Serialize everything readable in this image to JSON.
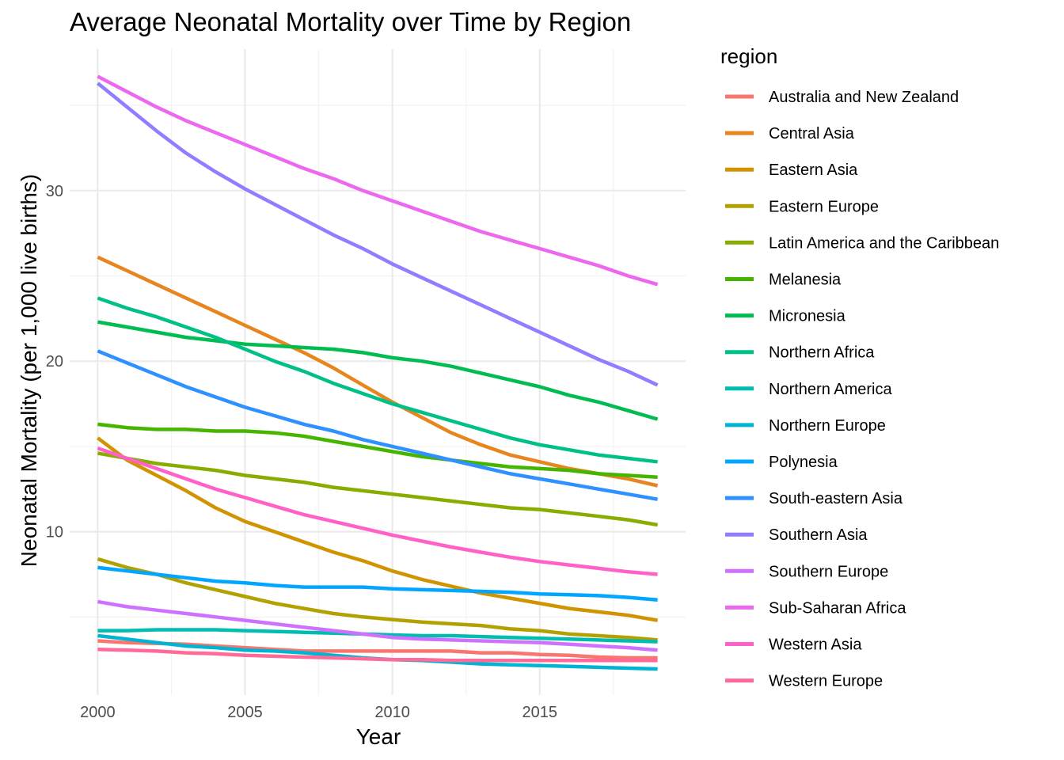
{
  "chart_data": {
    "type": "line",
    "title": "Average Neonatal Mortality over Time by Region",
    "xlabel": "Year",
    "ylabel": "Neonatal Mortality (per 1,000 live births)",
    "xlim": [
      1999.05,
      2019.95
    ],
    "ylim": [
      0.42,
      38.3
    ],
    "x_ticks": [
      2000,
      2005,
      2010,
      2015
    ],
    "x_tick_labels": [
      "2000",
      "2005",
      "2010",
      "2015"
    ],
    "y_ticks": [
      10,
      20,
      30
    ],
    "y_tick_labels": [
      "10",
      "20",
      "30"
    ],
    "grid": true,
    "legend_title": "region",
    "legend_position": "right",
    "x": [
      2000,
      2001,
      2002,
      2003,
      2004,
      2005,
      2006,
      2007,
      2008,
      2009,
      2010,
      2011,
      2012,
      2013,
      2014,
      2015,
      2016,
      2017,
      2018,
      2019
    ],
    "series": [
      {
        "name": "Australia and New Zealand",
        "color": "#F8766D",
        "values": [
          3.6,
          3.5,
          3.45,
          3.4,
          3.3,
          3.2,
          3.1,
          3.0,
          3.0,
          3.0,
          3.0,
          3.0,
          3.0,
          2.9,
          2.9,
          2.8,
          2.75,
          2.65,
          2.6,
          2.6
        ]
      },
      {
        "name": "Central Asia",
        "color": "#E7851E",
        "values": [
          26.1,
          25.3,
          24.5,
          23.7,
          22.9,
          22.1,
          21.3,
          20.5,
          19.6,
          18.6,
          17.6,
          16.7,
          15.8,
          15.1,
          14.5,
          14.1,
          13.7,
          13.4,
          13.1,
          12.7
        ]
      },
      {
        "name": "Eastern Asia",
        "color": "#D09400",
        "values": [
          15.5,
          14.2,
          13.3,
          12.4,
          11.4,
          10.6,
          10.0,
          9.4,
          8.8,
          8.3,
          7.7,
          7.2,
          6.8,
          6.4,
          6.1,
          5.8,
          5.5,
          5.3,
          5.1,
          4.8
        ]
      },
      {
        "name": "Eastern Europe",
        "color": "#B2A100",
        "values": [
          8.4,
          7.9,
          7.5,
          7.0,
          6.6,
          6.2,
          5.8,
          5.5,
          5.2,
          5.0,
          4.85,
          4.7,
          4.6,
          4.5,
          4.3,
          4.2,
          4.0,
          3.9,
          3.8,
          3.65
        ]
      },
      {
        "name": "Latin America and the Caribbean",
        "color": "#89AC00",
        "values": [
          14.6,
          14.3,
          14.0,
          13.8,
          13.6,
          13.3,
          13.1,
          12.9,
          12.6,
          12.4,
          12.2,
          12.0,
          11.8,
          11.6,
          11.4,
          11.3,
          11.1,
          10.9,
          10.7,
          10.4
        ]
      },
      {
        "name": "Melanesia",
        "color": "#45B500",
        "values": [
          16.3,
          16.1,
          16.0,
          16.0,
          15.9,
          15.9,
          15.8,
          15.6,
          15.3,
          15.0,
          14.7,
          14.4,
          14.2,
          14.0,
          13.8,
          13.7,
          13.6,
          13.4,
          13.3,
          13.2
        ]
      },
      {
        "name": "Micronesia",
        "color": "#00BC51",
        "values": [
          22.3,
          22.0,
          21.7,
          21.4,
          21.2,
          21.0,
          20.9,
          20.8,
          20.7,
          20.5,
          20.2,
          20.0,
          19.7,
          19.3,
          18.9,
          18.5,
          18.0,
          17.6,
          17.1,
          16.6
        ]
      },
      {
        "name": "Northern Africa",
        "color": "#00C087",
        "values": [
          23.7,
          23.1,
          22.6,
          22.0,
          21.4,
          20.7,
          20.0,
          19.4,
          18.7,
          18.1,
          17.5,
          17.0,
          16.5,
          16.0,
          15.5,
          15.1,
          14.8,
          14.5,
          14.3,
          14.1
        ]
      },
      {
        "name": "Northern America",
        "color": "#00BDB0",
        "values": [
          4.2,
          4.2,
          4.25,
          4.25,
          4.25,
          4.2,
          4.15,
          4.1,
          4.05,
          4.0,
          3.95,
          3.9,
          3.9,
          3.85,
          3.8,
          3.75,
          3.7,
          3.65,
          3.6,
          3.55
        ]
      },
      {
        "name": "Northern Europe",
        "color": "#00B4D3",
        "values": [
          3.9,
          3.7,
          3.5,
          3.3,
          3.2,
          3.05,
          3.0,
          2.9,
          2.75,
          2.6,
          2.5,
          2.45,
          2.35,
          2.25,
          2.2,
          2.15,
          2.1,
          2.05,
          2.0,
          1.95
        ]
      },
      {
        "name": "Polynesia",
        "color": "#00A6FF",
        "values": [
          7.9,
          7.7,
          7.5,
          7.3,
          7.1,
          7.0,
          6.85,
          6.75,
          6.75,
          6.75,
          6.65,
          6.6,
          6.55,
          6.5,
          6.45,
          6.35,
          6.3,
          6.25,
          6.15,
          6.0
        ]
      },
      {
        "name": "South-eastern Asia",
        "color": "#2F90FF",
        "values": [
          20.6,
          19.9,
          19.2,
          18.5,
          17.9,
          17.3,
          16.8,
          16.3,
          15.9,
          15.4,
          15.0,
          14.6,
          14.2,
          13.8,
          13.4,
          13.1,
          12.8,
          12.5,
          12.2,
          11.9
        ]
      },
      {
        "name": "Southern Asia",
        "color": "#8F7EFF",
        "values": [
          36.3,
          34.9,
          33.5,
          32.2,
          31.1,
          30.1,
          29.2,
          28.3,
          27.4,
          26.6,
          25.7,
          24.9,
          24.1,
          23.3,
          22.5,
          21.7,
          20.9,
          20.1,
          19.4,
          18.6
        ]
      },
      {
        "name": "Southern Europe",
        "color": "#CF71FF",
        "values": [
          5.9,
          5.6,
          5.4,
          5.2,
          5.0,
          4.8,
          4.6,
          4.4,
          4.2,
          4.0,
          3.8,
          3.7,
          3.65,
          3.6,
          3.55,
          3.5,
          3.4,
          3.3,
          3.2,
          3.05
        ]
      },
      {
        "name": "Sub-Saharan Africa",
        "color": "#EC69EF",
        "values": [
          36.7,
          35.8,
          34.9,
          34.1,
          33.4,
          32.7,
          32.0,
          31.3,
          30.7,
          30.0,
          29.4,
          28.8,
          28.2,
          27.6,
          27.1,
          26.6,
          26.1,
          25.6,
          25.0,
          24.5
        ]
      },
      {
        "name": "Western Asia",
        "color": "#FF61C9",
        "values": [
          14.9,
          14.3,
          13.7,
          13.1,
          12.5,
          12.0,
          11.5,
          11.0,
          10.6,
          10.2,
          9.8,
          9.45,
          9.1,
          8.8,
          8.5,
          8.25,
          8.05,
          7.85,
          7.65,
          7.5
        ]
      },
      {
        "name": "Western Europe",
        "color": "#FF6A98",
        "values": [
          3.1,
          3.05,
          3.0,
          2.9,
          2.85,
          2.75,
          2.7,
          2.65,
          2.6,
          2.55,
          2.5,
          2.5,
          2.45,
          2.45,
          2.45,
          2.45,
          2.45,
          2.45,
          2.45,
          2.45
        ]
      }
    ]
  }
}
